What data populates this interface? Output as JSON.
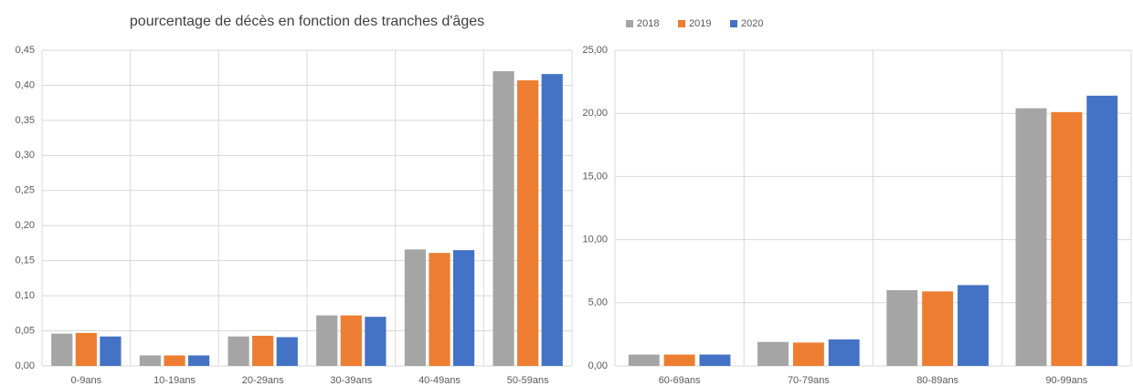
{
  "chart_data": [
    {
      "type": "bar",
      "title": "pourcentage de décès en fonction des tranches d'âges",
      "categories": [
        "0-9ans",
        "10-19ans",
        "20-29ans",
        "30-39ans",
        "40-49ans",
        "50-59ans"
      ],
      "series": [
        {
          "color": "#a5a5a5",
          "values": [
            0.046,
            0.015,
            0.042,
            0.072,
            0.166,
            0.42
          ]
        },
        {
          "color": "#ed7d31",
          "values": [
            0.047,
            0.015,
            0.043,
            0.072,
            0.161,
            0.407
          ]
        },
        {
          "color": "#4472c4",
          "values": [
            0.042,
            0.015,
            0.041,
            0.07,
            0.165,
            0.416
          ]
        }
      ],
      "ylim": [
        0,
        0.45
      ],
      "yticks": [
        {
          "value": 0,
          "label": "0,00"
        },
        {
          "value": 0.05,
          "label": "0,05"
        },
        {
          "value": 0.1,
          "label": "0,10"
        },
        {
          "value": 0.15,
          "label": "0,15"
        },
        {
          "value": 0.2,
          "label": "0,20"
        },
        {
          "value": 0.25,
          "label": "0,25"
        },
        {
          "value": 0.3,
          "label": "0,30"
        },
        {
          "value": 0.35,
          "label": "0,35"
        },
        {
          "value": 0.4,
          "label": "0,40"
        },
        {
          "value": 0.45,
          "label": "0,45"
        }
      ],
      "grid": true
    },
    {
      "type": "bar",
      "categories": [
        "60-69ans",
        "70-79ans",
        "80-89ans",
        "90-99ans"
      ],
      "series": [
        {
          "name": "2018",
          "color": "#a5a5a5",
          "values": [
            0.9,
            1.9,
            6.0,
            20.4
          ]
        },
        {
          "name": "2019",
          "color": "#ed7d31",
          "values": [
            0.9,
            1.85,
            5.9,
            20.1
          ]
        },
        {
          "name": "2020",
          "color": "#4472c4",
          "values": [
            0.9,
            2.1,
            6.4,
            21.4
          ]
        }
      ],
      "ylim": [
        0,
        25
      ],
      "yticks": [
        {
          "value": 0,
          "label": "0,00"
        },
        {
          "value": 5,
          "label": "5,00"
        },
        {
          "value": 10,
          "label": "10,00"
        },
        {
          "value": 15,
          "label": "15,00"
        },
        {
          "value": 20,
          "label": "20,00"
        },
        {
          "value": 25,
          "label": "25,00"
        }
      ],
      "grid": true,
      "legend": "top-left"
    }
  ]
}
